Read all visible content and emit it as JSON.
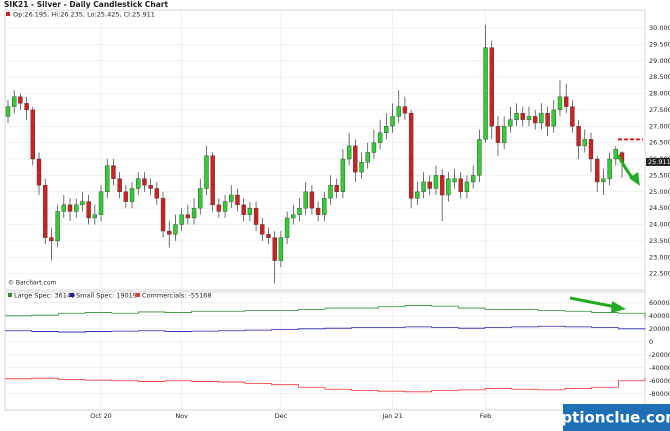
{
  "chart_data": {
    "type": "candlestick",
    "title": "SIK21 - Silver - Daily Candlestick Chart",
    "ohlc_label": "Op:26.195, Hi:26.235, Lo:25.425, Cl:25.911",
    "source": "© Barchart.com",
    "watermark": "optionclue.com",
    "categories": [
      null,
      null,
      null,
      null,
      null,
      null,
      null,
      null,
      null,
      null,
      null,
      null,
      null,
      null,
      null,
      "Oct 20",
      null,
      null,
      null,
      null,
      null,
      null,
      null,
      null,
      null,
      null,
      null,
      null,
      "Nov",
      null,
      null,
      null,
      null,
      null,
      null,
      null,
      null,
      null,
      null,
      null,
      null,
      null,
      null,
      null,
      "Dec",
      null,
      null,
      null,
      null,
      null,
      null,
      null,
      null,
      null,
      null,
      null,
      null,
      null,
      null,
      null,
      null,
      null,
      "Jan 21",
      null,
      null,
      null,
      null,
      null,
      null,
      null,
      null,
      null,
      null,
      null,
      null,
      null,
      null,
      "Feb",
      null,
      null,
      null,
      null,
      null,
      null,
      null,
      null,
      null,
      null,
      null,
      null,
      null,
      null,
      null,
      null,
      null,
      null,
      null,
      null,
      null,
      null
    ],
    "open": [
      27.3,
      27.6,
      27.9,
      27.7,
      27.5,
      26.0,
      25.2,
      23.6,
      23.5,
      24.4,
      24.6,
      24.4,
      24.6,
      24.7,
      24.2,
      24.3,
      25.0,
      25.8,
      25.4,
      25.0,
      24.7,
      25.1,
      25.4,
      25.2,
      25.1,
      24.8,
      23.8,
      23.7,
      24.0,
      24.3,
      24.2,
      24.5,
      25.1,
      26.1,
      24.6,
      24.4,
      24.7,
      24.9,
      24.6,
      24.3,
      24.5,
      24.0,
      23.7,
      23.6,
      22.9,
      23.6,
      24.2,
      24.3,
      24.5,
      25.0,
      24.5,
      24.3,
      24.8,
      25.2,
      25.0,
      26.0,
      26.4,
      25.6,
      25.9,
      26.2,
      26.5,
      26.8,
      27.0,
      27.3,
      27.6,
      27.4,
      24.8,
      25.0,
      25.3,
      25.1,
      25.5,
      24.9,
      25.3,
      25.4,
      25.0,
      25.3,
      25.5,
      26.6,
      29.4,
      27.0,
      26.5,
      27.0,
      27.2,
      27.4,
      27.2,
      27.3,
      27.1,
      27.4,
      27.0,
      27.5,
      27.9,
      27.6,
      27.0,
      26.4,
      26.6,
      26.0,
      25.3,
      25.4,
      26.0,
      26.195
    ],
    "high": [
      27.8,
      28.1,
      28.0,
      27.9,
      27.6,
      26.2,
      25.4,
      23.9,
      24.6,
      24.9,
      24.8,
      24.8,
      25.0,
      24.9,
      24.6,
      25.2,
      26.0,
      26.0,
      25.6,
      25.2,
      25.3,
      25.6,
      25.6,
      25.4,
      25.3,
      25.0,
      24.1,
      24.3,
      24.5,
      24.6,
      24.8,
      25.4,
      26.4,
      26.2,
      24.8,
      24.9,
      25.2,
      25.1,
      24.8,
      24.7,
      24.7,
      24.2,
      23.9,
      23.8,
      23.8,
      24.4,
      24.6,
      24.8,
      25.3,
      25.2,
      24.7,
      25.0,
      25.5,
      25.4,
      26.3,
      26.8,
      26.6,
      26.2,
      26.5,
      26.9,
      27.2,
      27.4,
      27.7,
      28.1,
      27.9,
      27.5,
      25.3,
      25.6,
      25.5,
      25.8,
      25.7,
      25.6,
      25.7,
      25.6,
      25.5,
      25.8,
      26.9,
      30.1,
      29.6,
      27.3,
      27.3,
      27.6,
      27.7,
      27.6,
      27.6,
      27.5,
      27.7,
      27.6,
      27.8,
      28.4,
      28.3,
      27.8,
      27.2,
      26.9,
      26.8,
      26.1,
      25.7,
      26.2,
      26.4,
      26.235
    ],
    "low": [
      27.1,
      27.4,
      27.5,
      27.2,
      25.8,
      24.9,
      23.4,
      22.9,
      23.3,
      24.2,
      24.1,
      24.2,
      24.4,
      24.0,
      24.0,
      24.1,
      24.8,
      25.2,
      24.8,
      24.5,
      24.5,
      24.9,
      25.0,
      24.9,
      24.6,
      23.6,
      23.3,
      23.5,
      23.8,
      24.0,
      24.0,
      24.3,
      24.9,
      24.4,
      24.2,
      24.2,
      24.5,
      24.4,
      24.1,
      24.1,
      23.8,
      23.5,
      23.4,
      22.2,
      22.7,
      23.4,
      24.0,
      24.1,
      24.3,
      24.3,
      24.1,
      24.1,
      24.6,
      24.8,
      24.8,
      25.8,
      25.3,
      25.4,
      25.7,
      26.0,
      26.3,
      26.6,
      26.8,
      27.1,
      27.2,
      24.5,
      24.6,
      24.8,
      24.9,
      24.9,
      24.1,
      24.7,
      25.1,
      24.8,
      24.8,
      25.1,
      25.3,
      26.5,
      26.6,
      26.1,
      26.3,
      26.8,
      27.0,
      27.0,
      27.0,
      26.9,
      26.9,
      26.7,
      26.8,
      27.3,
      27.4,
      26.8,
      26.0,
      26.2,
      25.6,
      25.0,
      24.9,
      25.2,
      25.8,
      25.425
    ],
    "close": [
      27.6,
      27.9,
      27.7,
      27.5,
      26.0,
      25.2,
      23.6,
      23.5,
      24.4,
      24.6,
      24.4,
      24.6,
      24.7,
      24.2,
      24.3,
      25.0,
      25.8,
      25.4,
      25.0,
      24.7,
      25.1,
      25.4,
      25.2,
      25.1,
      24.8,
      23.8,
      23.7,
      24.0,
      24.3,
      24.2,
      24.5,
      25.1,
      26.1,
      24.6,
      24.4,
      24.7,
      24.9,
      24.6,
      24.3,
      24.5,
      24.0,
      23.7,
      23.6,
      22.9,
      23.6,
      24.2,
      24.3,
      24.5,
      25.0,
      24.5,
      24.3,
      24.8,
      25.2,
      25.0,
      26.0,
      26.4,
      25.6,
      25.9,
      26.2,
      26.5,
      26.8,
      27.0,
      27.3,
      27.6,
      27.4,
      24.8,
      25.0,
      25.3,
      25.1,
      25.5,
      24.9,
      25.4,
      25.4,
      25.0,
      25.3,
      25.5,
      26.6,
      29.4,
      27.0,
      26.5,
      27.0,
      27.2,
      27.4,
      27.2,
      27.3,
      27.1,
      27.4,
      27.0,
      27.5,
      27.9,
      27.6,
      27.0,
      26.4,
      26.6,
      26.0,
      25.3,
      25.4,
      26.0,
      26.3,
      25.911
    ],
    "up_color": "#33cc33",
    "down_color": "#cc2222",
    "level": 26.6,
    "level_color": "#dd2222",
    "ylim": [
      22.0,
      30.55
    ],
    "yticks": [
      {
        "value": 22.5,
        "label": "22.500"
      },
      {
        "value": 23.0,
        "label": "23.000"
      },
      {
        "value": 23.5,
        "label": "23.500"
      },
      {
        "value": 24.0,
        "label": "24.000"
      },
      {
        "value": 24.5,
        "label": "24.500"
      },
      {
        "value": 25.0,
        "label": "25.000"
      },
      {
        "value": 25.5,
        "label": "25.500"
      },
      {
        "value": 26.0,
        "label": "26.000"
      },
      {
        "value": 26.5,
        "label": "26.500"
      },
      {
        "value": 27.0,
        "label": "27.000"
      },
      {
        "value": 27.5,
        "label": "27.500"
      },
      {
        "value": 28.0,
        "label": "28.000"
      },
      {
        "value": 28.5,
        "label": "28.500"
      },
      {
        "value": 29.0,
        "label": "29.000"
      },
      {
        "value": 29.5,
        "label": "29.500"
      },
      {
        "value": 30.0,
        "label": "30.000"
      }
    ],
    "grid": true,
    "cot": {
      "type": "line",
      "series": [
        {
          "name": "Large Spec:",
          "color": "#2e8b2e",
          "values": [
            40000,
            41000,
            44000,
            45000,
            44000,
            46000,
            45000,
            47000,
            47000,
            48000,
            48000,
            50000,
            52000,
            52000,
            54000,
            56000,
            55000,
            52000,
            50000,
            50000,
            48000,
            47000,
            45000,
            44000,
            36149
          ]
        },
        {
          "name": "Small Spec:",
          "color": "#2222aa",
          "values": [
            17000,
            16000,
            15000,
            16000,
            16500,
            17000,
            16000,
            16500,
            17000,
            18000,
            19000,
            20000,
            21000,
            22000,
            22000,
            23000,
            22000,
            21000,
            22000,
            23000,
            24000,
            23000,
            22000,
            20000,
            19019
          ]
        },
        {
          "name": "Commercials:",
          "color": "#ee3333",
          "values": [
            -57000,
            -56000,
            -58000,
            -59000,
            -60000,
            -61000,
            -60000,
            -61000,
            -62000,
            -64000,
            -66000,
            -70000,
            -73000,
            -75000,
            -76000,
            -77000,
            -75000,
            -74000,
            -72000,
            -73000,
            -74000,
            -72000,
            -70000,
            -60000,
            -55168
          ]
        }
      ],
      "ylim": [
        -105000,
        69000
      ],
      "yticks": [
        60000,
        40000,
        20000,
        0,
        -20000,
        -40000,
        -60000,
        -80000
      ]
    }
  }
}
